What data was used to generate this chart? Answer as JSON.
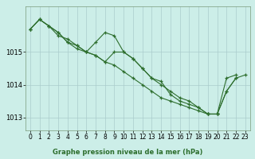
{
  "xlabel": "Graphe pression niveau de la mer (hPa)",
  "bg_color": "#cceee8",
  "grid_color": "#aacccc",
  "line_color": "#2d6e2d",
  "x_ticks": [
    0,
    1,
    2,
    3,
    4,
    5,
    6,
    7,
    8,
    9,
    10,
    11,
    12,
    13,
    14,
    15,
    16,
    17,
    18,
    19,
    20,
    21,
    22,
    23
  ],
  "ylim": [
    1012.6,
    1016.4
  ],
  "yticks": [
    1013,
    1014,
    1015
  ],
  "tick_fontsize": 5.5,
  "series": [
    [
      1015.7,
      1016.0,
      1015.8,
      1015.5,
      1015.4,
      1015.2,
      1015.0,
      1014.9,
      1014.7,
      1015.0,
      1015.0,
      1014.8,
      1014.5,
      1014.2,
      1014.0,
      1013.8,
      1013.6,
      1013.5,
      1013.3,
      1013.1,
      1013.1,
      1014.2,
      1014.3,
      null
    ],
    [
      1015.7,
      1016.0,
      1015.8,
      1015.6,
      1015.3,
      1015.2,
      1015.0,
      1015.3,
      1015.6,
      1015.5,
      1015.0,
      1014.8,
      1014.5,
      1014.2,
      1014.1,
      1013.7,
      1013.5,
      1013.4,
      1013.3,
      1013.1,
      1013.1,
      null,
      null,
      null
    ],
    [
      1015.7,
      1016.0,
      1015.8,
      1015.6,
      1015.3,
      1015.1,
      1015.0,
      1014.9,
      1014.7,
      1014.6,
      1014.4,
      1014.2,
      1014.0,
      1013.8,
      1013.6,
      1013.5,
      1013.4,
      1013.3,
      1013.2,
      1013.1,
      1013.1,
      1013.8,
      1014.2,
      null
    ],
    [
      null,
      null,
      null,
      null,
      null,
      null,
      null,
      null,
      null,
      null,
      null,
      null,
      null,
      null,
      null,
      null,
      null,
      null,
      null,
      1013.1,
      1013.1,
      1013.8,
      1014.2,
      1014.3
    ]
  ]
}
